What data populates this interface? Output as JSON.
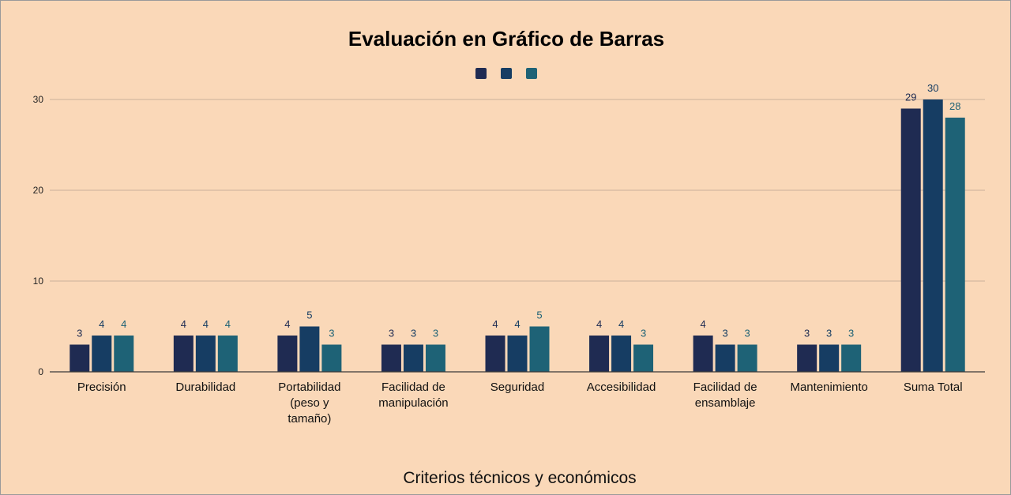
{
  "chart_data": {
    "type": "bar",
    "title": "Evaluación en Gráfico de Barras",
    "xlabel": "Criterios técnicos y económicos",
    "ylabel": "",
    "ylim": [
      0,
      33
    ],
    "yticks": [
      0,
      10,
      20,
      30
    ],
    "grid": true,
    "legend_position": "top-center",
    "background_color": "#fad8b8",
    "categories": [
      [
        "Precisión"
      ],
      [
        "Durabilidad"
      ],
      [
        "Portabilidad",
        "(peso y",
        "tamaño)"
      ],
      [
        "Facilidad de",
        "manipulación"
      ],
      [
        "Seguridad"
      ],
      [
        "Accesibilidad"
      ],
      [
        "Facilidad de",
        "ensamblaje"
      ],
      [
        "Mantenimiento"
      ],
      [
        "Suma Total"
      ]
    ],
    "series": [
      {
        "color": "#1f2b52",
        "label_color": "#1f2b52",
        "values": [
          3,
          4,
          4,
          3,
          4,
          4,
          4,
          3,
          29
        ]
      },
      {
        "color": "#163d63",
        "label_color": "#163d63",
        "values": [
          4,
          4,
          5,
          3,
          4,
          4,
          3,
          3,
          30
        ]
      },
      {
        "color": "#1e6276",
        "label_color": "#1e6276",
        "values": [
          4,
          4,
          3,
          3,
          5,
          3,
          3,
          3,
          28
        ]
      }
    ]
  }
}
